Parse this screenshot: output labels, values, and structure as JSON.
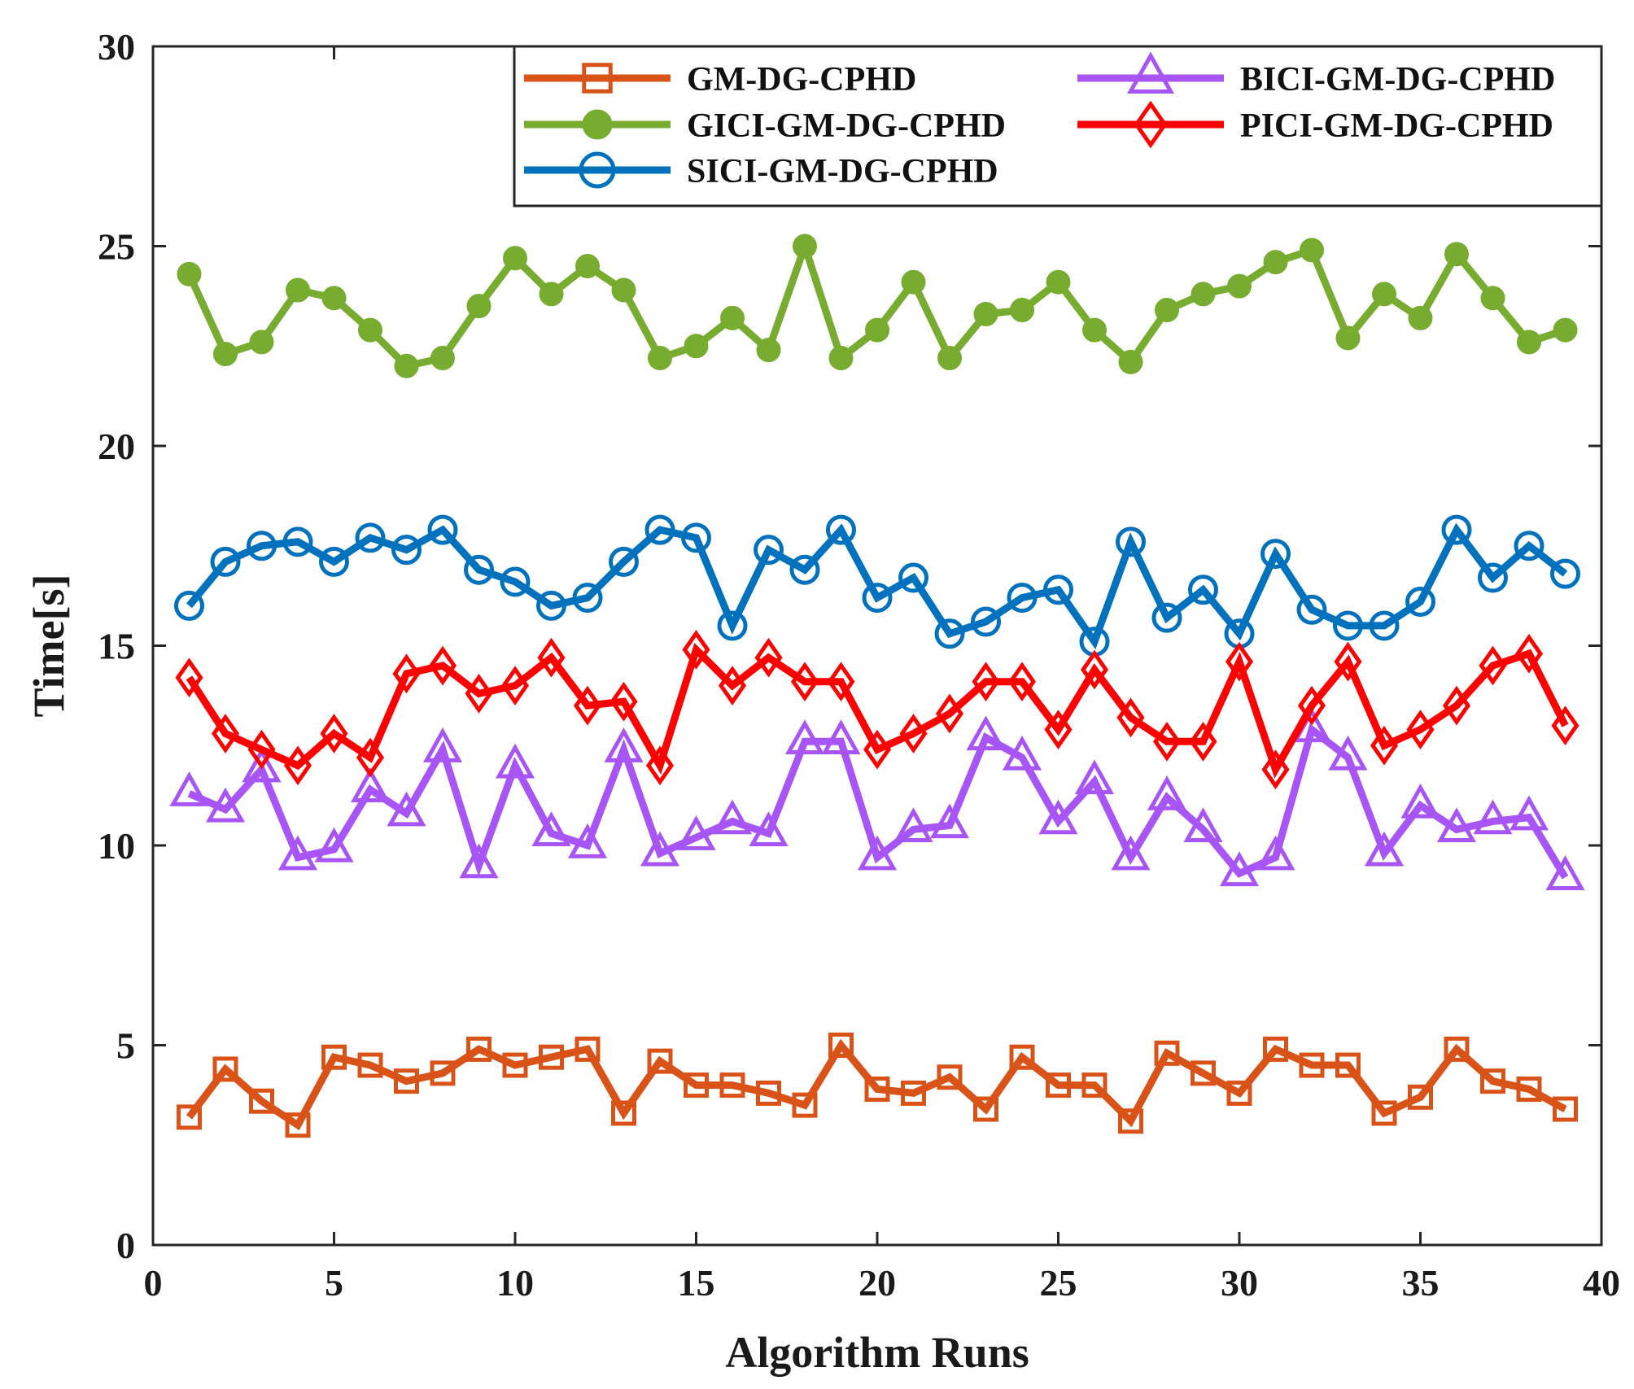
{
  "chart_data": {
    "type": "line",
    "title": "",
    "xlabel": "Algorithm Runs",
    "ylabel": "Time[s]",
    "xlim": [
      0,
      40
    ],
    "ylim": [
      0,
      30
    ],
    "xticks": [
      0,
      5,
      10,
      15,
      20,
      25,
      30,
      35,
      40
    ],
    "yticks": [
      0,
      5,
      10,
      15,
      20,
      25,
      30
    ],
    "grid": false,
    "legend_position": "top-right",
    "x": [
      1,
      2,
      3,
      4,
      5,
      6,
      7,
      8,
      9,
      10,
      11,
      12,
      13,
      14,
      15,
      16,
      17,
      18,
      19,
      20,
      21,
      22,
      23,
      24,
      25,
      26,
      27,
      28,
      29,
      30,
      31,
      32,
      33,
      34,
      35,
      36,
      37,
      38,
      39
    ],
    "series": [
      {
        "name": "GM-DG-CPHD",
        "color": "#d95319",
        "marker": "square",
        "values": [
          3.2,
          4.4,
          3.6,
          3.0,
          4.7,
          4.5,
          4.1,
          4.3,
          4.9,
          4.5,
          4.7,
          4.9,
          3.3,
          4.6,
          4.0,
          4.0,
          3.8,
          3.5,
          5.0,
          3.9,
          3.8,
          4.2,
          3.4,
          4.7,
          4.0,
          4.0,
          3.1,
          4.8,
          4.3,
          3.8,
          4.9,
          4.5,
          4.5,
          3.3,
          3.7,
          4.9,
          4.1,
          3.9,
          3.4
        ]
      },
      {
        "name": "GICI-GM-DG-CPHD",
        "color": "#77ac30",
        "marker": "circle-filled",
        "values": [
          24.3,
          22.3,
          22.6,
          23.9,
          23.7,
          22.9,
          22.0,
          22.2,
          23.5,
          24.7,
          23.8,
          24.5,
          23.9,
          22.2,
          22.5,
          23.2,
          22.4,
          25.0,
          22.2,
          22.9,
          24.1,
          22.2,
          23.3,
          23.4,
          24.1,
          22.9,
          22.1,
          23.4,
          23.8,
          24.0,
          24.6,
          24.9,
          22.7,
          23.8,
          23.2,
          24.8,
          23.7,
          22.6,
          22.9
        ]
      },
      {
        "name": "SICI-GM-DG-CPHD",
        "color": "#0072bd",
        "marker": "circle-open",
        "values": [
          16.0,
          17.1,
          17.5,
          17.6,
          17.1,
          17.7,
          17.4,
          17.9,
          16.9,
          16.6,
          16.0,
          16.2,
          17.1,
          17.9,
          17.7,
          15.5,
          17.4,
          16.9,
          17.9,
          16.2,
          16.7,
          15.3,
          15.6,
          16.2,
          16.4,
          15.1,
          17.6,
          15.7,
          16.4,
          15.3,
          17.3,
          15.9,
          15.5,
          15.5,
          16.1,
          17.9,
          16.7,
          17.5,
          16.8
        ]
      },
      {
        "name": "BICI-GM-DG-CPHD",
        "color": "#a855f7",
        "marker": "triangle",
        "values": [
          11.3,
          10.9,
          11.9,
          9.7,
          9.9,
          11.4,
          10.8,
          12.4,
          9.5,
          12.0,
          10.3,
          10.0,
          12.4,
          9.8,
          10.2,
          10.6,
          10.3,
          12.6,
          12.6,
          9.7,
          10.4,
          10.5,
          12.7,
          12.2,
          10.6,
          11.6,
          9.7,
          11.2,
          10.4,
          9.3,
          9.7,
          12.9,
          12.2,
          9.8,
          11.0,
          10.4,
          10.6,
          10.7,
          9.2
        ]
      },
      {
        "name": "PICI-GM-DG-CPHD",
        "color": "#ff0000",
        "marker": "diamond",
        "values": [
          14.2,
          12.8,
          12.4,
          12.0,
          12.8,
          12.2,
          14.3,
          14.5,
          13.8,
          14.0,
          14.7,
          13.5,
          13.6,
          12.0,
          14.9,
          14.0,
          14.7,
          14.1,
          14.1,
          12.4,
          12.8,
          13.3,
          14.1,
          14.1,
          12.9,
          14.4,
          13.2,
          12.6,
          12.6,
          14.6,
          11.9,
          13.5,
          14.6,
          12.5,
          12.9,
          13.5,
          14.5,
          14.8,
          13.0
        ]
      }
    ],
    "legend_order": [
      0,
      3,
      1,
      4,
      2
    ]
  }
}
